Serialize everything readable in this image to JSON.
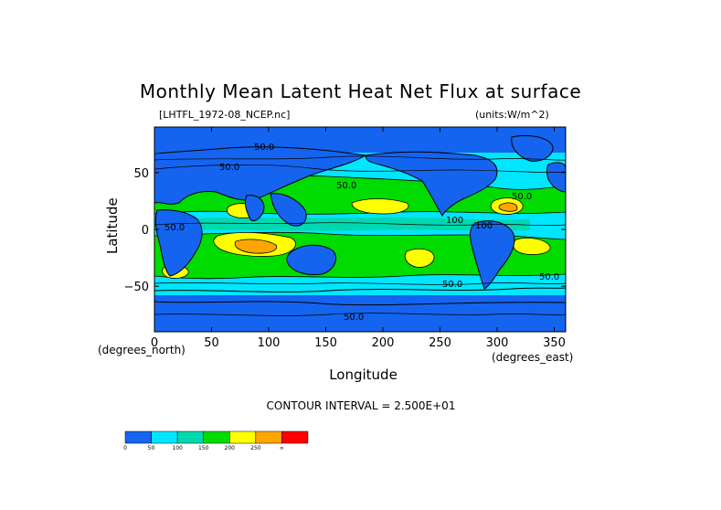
{
  "chart_data": {
    "type": "heatmap",
    "title": "Monthly Mean Latent Heat Net Flux at surface",
    "source_file": "[LHTFL_1972-08_NCEP.nc]",
    "units_label": "(units:W/m^2)",
    "xlabel": "Longitude",
    "ylabel": "Latitude",
    "x_unit_note": "(degrees_east)",
    "y_unit_note": "(degrees_north)",
    "xlim": [
      0,
      360
    ],
    "ylim": [
      -90,
      90
    ],
    "x_ticks": [
      "0",
      "50",
      "100",
      "150",
      "200",
      "250",
      "300",
      "350"
    ],
    "y_ticks": [
      "50",
      "0",
      "−50"
    ],
    "contour_interval_text": "CONTOUR INTERVAL = 2.500E+01",
    "contour_labels": [
      "50.0",
      "50.0",
      "50.0",
      "50.0",
      "50.0",
      "50.0",
      "50.0",
      "50.0",
      "100",
      "100"
    ],
    "colorbar": {
      "levels": [
        "0",
        "50",
        "100",
        "150",
        "200",
        "250",
        "∞"
      ],
      "colors": [
        "#1464f0",
        "#00e6ff",
        "#00d8b0",
        "#00dc00",
        "#ffff00",
        "#ffa500",
        "#ff0000"
      ]
    },
    "regions": [
      {
        "name": "ocean-background",
        "level": 1,
        "color": "#00e6ff"
      },
      {
        "name": "land-and-polar",
        "level": 0,
        "color": "#1464f0"
      },
      {
        "name": "subtropical-band",
        "level": 3,
        "color": "#00dc00"
      },
      {
        "name": "high-flux-cells",
        "level": 4,
        "color": "#ffff00"
      },
      {
        "name": "peak-cells",
        "level": 5,
        "color": "#ffa500"
      }
    ]
  }
}
